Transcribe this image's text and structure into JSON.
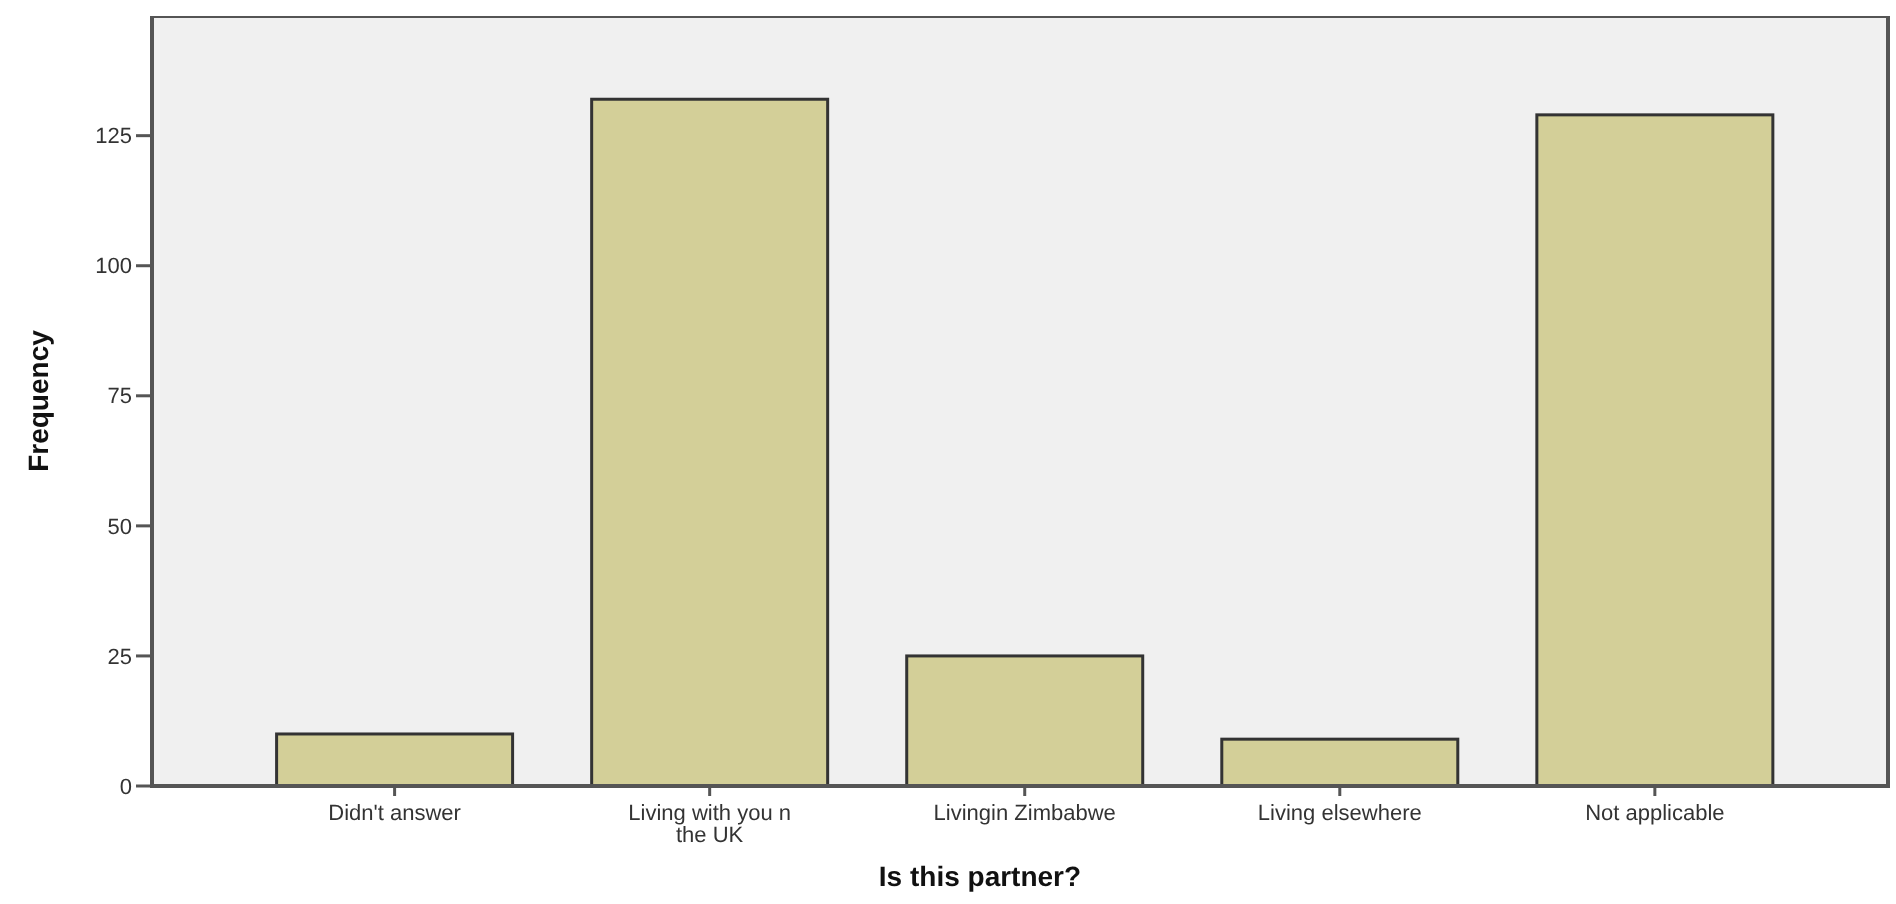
{
  "chart_data": {
    "type": "bar",
    "xlabel": "Is this partner?",
    "ylabel": "Frequency",
    "categories": [
      "Didn't answer",
      "Living with you n the UK",
      "Livingin Zimbabwe",
      "Living elsewhere",
      "Not applicable"
    ],
    "values": [
      10,
      132,
      25,
      9,
      129
    ],
    "color": "#d3cf98",
    "ylim": [
      0,
      148
    ],
    "yticks": [
      0,
      25,
      50,
      75,
      100,
      125
    ],
    "grid": false
  }
}
